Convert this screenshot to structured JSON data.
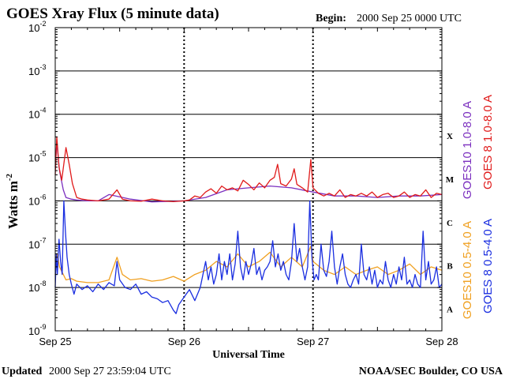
{
  "header": {
    "title": "GOES Xray Flux (5 minute data)",
    "begin_label": "Begin:",
    "begin_value": "2000 Sep 25 0000 UTC"
  },
  "footer": {
    "updated_label": "Updated",
    "updated_value": "2000 Sep 27 23:59:04 UTC",
    "credit": "NOAA/SEC Boulder, CO USA"
  },
  "chart_data": {
    "type": "line",
    "title": "GOES Xray Flux (5 minute data)",
    "xlabel": "Universal Time",
    "ylabel": "Watts m",
    "ylabel_sup": "-2",
    "yscale": "log",
    "ylim": [
      1e-09,
      0.01
    ],
    "ytick_exponents": [
      -2,
      -3,
      -4,
      -5,
      -6,
      -7,
      -8,
      -9
    ],
    "ytick_base": "10",
    "xlim": [
      0,
      72
    ],
    "x_units": "hours since 2000 Sep 25 0000 UTC",
    "xticks": [
      {
        "x": 0,
        "label": "Sep 25"
      },
      {
        "x": 24,
        "label": "Sep 26"
      },
      {
        "x": 48,
        "label": "Sep 27"
      },
      {
        "x": 72,
        "label": "Sep 28"
      }
    ],
    "flare_classes": [
      {
        "label": "X",
        "exp": -4
      },
      {
        "label": "M",
        "exp": -5
      },
      {
        "label": "C",
        "exp": -6
      },
      {
        "label": "B",
        "exp": -7
      },
      {
        "label": "A",
        "exp": -8
      }
    ],
    "series": [
      {
        "name": "GOES10 1.0-8.0 A",
        "color": "#7b2fbf",
        "points": [
          [
            0,
            6e-06
          ],
          [
            0.3,
            2.2e-05
          ],
          [
            0.8,
            5e-06
          ],
          [
            1.5,
            1.8e-06
          ],
          [
            2,
            1.2e-06
          ],
          [
            3,
            1.1e-06
          ],
          [
            4,
            1.05e-06
          ],
          [
            6,
            1e-06
          ],
          [
            8,
            1e-06
          ],
          [
            10,
            1.4e-06
          ],
          [
            14,
            1.1e-06
          ],
          [
            18,
            9.5e-07
          ],
          [
            22,
            9.8e-07
          ],
          [
            24,
            1e-06
          ],
          [
            28,
            1.2e-06
          ],
          [
            32,
            1.8e-06
          ],
          [
            36,
            2e-06
          ],
          [
            40,
            2.2e-06
          ],
          [
            44,
            2e-06
          ],
          [
            48,
            1.6e-06
          ],
          [
            52,
            1.3e-06
          ],
          [
            56,
            1.3e-06
          ],
          [
            60,
            1.2e-06
          ],
          [
            64,
            1.3e-06
          ],
          [
            68,
            1.3e-06
          ],
          [
            72,
            1.4e-06
          ]
        ]
      },
      {
        "name": "GOES 8 1.0-8.0 A",
        "color": "#e01a1a",
        "points": [
          [
            0,
            4e-06
          ],
          [
            0.3,
            3e-05
          ],
          [
            0.7,
            6e-06
          ],
          [
            1.2,
            3e-06
          ],
          [
            2,
            1.7e-05
          ],
          [
            2.6,
            7e-06
          ],
          [
            3.2,
            2.5e-06
          ],
          [
            4,
            1.2e-06
          ],
          [
            5,
            1.1e-06
          ],
          [
            6,
            1.05e-06
          ],
          [
            8,
            1e-06
          ],
          [
            10,
            1.1e-06
          ],
          [
            11.5,
            1.8e-06
          ],
          [
            12.5,
            1.1e-06
          ],
          [
            14,
            1e-06
          ],
          [
            16,
            9.8e-07
          ],
          [
            18,
            1.1e-06
          ],
          [
            20,
            1e-06
          ],
          [
            22,
            9.6e-07
          ],
          [
            24,
            1e-06
          ],
          [
            25,
            1.05e-06
          ],
          [
            26,
            1.3e-06
          ],
          [
            27,
            1.2e-06
          ],
          [
            28,
            1.6e-06
          ],
          [
            29,
            1.9e-06
          ],
          [
            30,
            1.5e-06
          ],
          [
            31,
            2.2e-06
          ],
          [
            32,
            1.8e-06
          ],
          [
            33,
            2e-06
          ],
          [
            34,
            1.7e-06
          ],
          [
            35,
            3e-06
          ],
          [
            36,
            2.4e-06
          ],
          [
            37,
            1.8e-06
          ],
          [
            38,
            2.6e-06
          ],
          [
            39,
            2e-06
          ],
          [
            40,
            3e-06
          ],
          [
            40.8,
            3.5e-06
          ],
          [
            41.4,
            7e-06
          ],
          [
            42,
            2.5e-06
          ],
          [
            43,
            2.2e-06
          ],
          [
            44,
            3.2e-06
          ],
          [
            44.5,
            5.5e-06
          ],
          [
            45,
            2.4e-06
          ],
          [
            46,
            2e-06
          ],
          [
            47,
            1.6e-06
          ],
          [
            47.6,
            9e-06
          ],
          [
            48,
            2e-06
          ],
          [
            49,
            1.5e-06
          ],
          [
            50,
            1.3e-06
          ],
          [
            51,
            1.5e-06
          ],
          [
            52,
            1.3e-06
          ],
          [
            53,
            1.8e-06
          ],
          [
            54,
            1.2e-06
          ],
          [
            55,
            1.4e-06
          ],
          [
            56,
            1.3e-06
          ],
          [
            57,
            1.5e-06
          ],
          [
            58,
            1.3e-06
          ],
          [
            59,
            1.6e-06
          ],
          [
            60,
            1.2e-06
          ],
          [
            61,
            1.4e-06
          ],
          [
            62,
            1.5e-06
          ],
          [
            63,
            1.2e-06
          ],
          [
            64,
            1.3e-06
          ],
          [
            65,
            1.6e-06
          ],
          [
            66,
            1.2e-06
          ],
          [
            67,
            1.4e-06
          ],
          [
            68,
            1.3e-06
          ],
          [
            69,
            1.8e-06
          ],
          [
            70,
            1.2e-06
          ],
          [
            71,
            1.5e-06
          ],
          [
            72,
            1.4e-06
          ]
        ]
      },
      {
        "name": "GOES10 0.5-4.0 A",
        "color": "#f0a020",
        "points": [
          [
            0,
            2e-08
          ],
          [
            0.4,
            6e-08
          ],
          [
            0.8,
            3e-08
          ],
          [
            1.5,
            2e-08
          ],
          [
            2,
            1.5e-08
          ],
          [
            3,
            1.6e-08
          ],
          [
            4,
            1.4e-08
          ],
          [
            6,
            1.3e-08
          ],
          [
            8,
            1.3e-08
          ],
          [
            10,
            1.5e-08
          ],
          [
            11.5,
            5e-08
          ],
          [
            12.5,
            2e-08
          ],
          [
            14,
            1.5e-08
          ],
          [
            16,
            1.6e-08
          ],
          [
            18,
            1.4e-08
          ],
          [
            20,
            1.5e-08
          ],
          [
            22,
            1.8e-08
          ],
          [
            24,
            1.4e-08
          ],
          [
            26,
            2e-08
          ],
          [
            28,
            2.5e-08
          ],
          [
            30,
            4e-08
          ],
          [
            32,
            3e-08
          ],
          [
            34,
            6e-08
          ],
          [
            36,
            3e-08
          ],
          [
            38,
            4e-08
          ],
          [
            40,
            6.5e-08
          ],
          [
            42,
            3e-08
          ],
          [
            44,
            5e-08
          ],
          [
            46,
            3e-08
          ],
          [
            47.6,
            9e-08
          ],
          [
            48,
            4e-08
          ],
          [
            50,
            2.5e-08
          ],
          [
            52,
            2e-08
          ],
          [
            54,
            3e-08
          ],
          [
            56,
            2e-08
          ],
          [
            58,
            2.5e-08
          ],
          [
            60,
            3e-08
          ],
          [
            62,
            2e-08
          ],
          [
            64,
            2.5e-08
          ],
          [
            66,
            3.5e-08
          ],
          [
            68,
            2e-08
          ],
          [
            70,
            3e-08
          ],
          [
            72,
            2.5e-08
          ]
        ]
      },
      {
        "name": "GOES 8 0.5-4.0 A",
        "color": "#1a2ee0",
        "points": [
          [
            0,
            1e-08
          ],
          [
            0.2,
            6e-08
          ],
          [
            0.4,
            2e-08
          ],
          [
            0.7,
            1.3e-07
          ],
          [
            1.0,
            4e-08
          ],
          [
            1.3,
            2e-08
          ],
          [
            1.6,
            1e-06
          ],
          [
            1.9,
            2e-07
          ],
          [
            2.2,
            5e-08
          ],
          [
            2.6,
            2e-08
          ],
          [
            3,
            1.2e-08
          ],
          [
            3.5,
            7e-09
          ],
          [
            4,
            1.2e-08
          ],
          [
            5,
            9e-09
          ],
          [
            6,
            1.1e-08
          ],
          [
            7,
            8e-09
          ],
          [
            8,
            1.2e-08
          ],
          [
            9,
            9e-09
          ],
          [
            10,
            1.3e-08
          ],
          [
            11,
            1.1e-08
          ],
          [
            11.5,
            4e-08
          ],
          [
            12,
            1.5e-08
          ],
          [
            13,
            1e-08
          ],
          [
            14,
            9e-09
          ],
          [
            15,
            1.2e-08
          ],
          [
            16,
            7e-09
          ],
          [
            17,
            8e-09
          ],
          [
            18,
            6e-09
          ],
          [
            19,
            5.5e-09
          ],
          [
            20,
            4.5e-09
          ],
          [
            21,
            5e-09
          ],
          [
            22,
            3e-09
          ],
          [
            22.5,
            2.5e-09
          ],
          [
            23,
            4e-09
          ],
          [
            24,
            6e-09
          ],
          [
            25,
            9e-09
          ],
          [
            26,
            5e-09
          ],
          [
            27,
            1e-08
          ],
          [
            28,
            4e-08
          ],
          [
            28.5,
            1.5e-08
          ],
          [
            29,
            3e-08
          ],
          [
            29.5,
            1.2e-08
          ],
          [
            30,
            2e-08
          ],
          [
            30.5,
            6e-08
          ],
          [
            31,
            1.5e-08
          ],
          [
            31.5,
            4e-08
          ],
          [
            32,
            2e-08
          ],
          [
            32.5,
            6e-08
          ],
          [
            33,
            1.5e-08
          ],
          [
            33.5,
            3.5e-08
          ],
          [
            34,
            2e-07
          ],
          [
            34.5,
            3e-08
          ],
          [
            35,
            1.5e-08
          ],
          [
            35.5,
            4e-08
          ],
          [
            36,
            2e-08
          ],
          [
            36.5,
            3.5e-08
          ],
          [
            37,
            8e-08
          ],
          [
            37.5,
            2e-08
          ],
          [
            38,
            3e-08
          ],
          [
            38.5,
            1.5e-08
          ],
          [
            39,
            2.5e-08
          ],
          [
            39.5,
            3e-08
          ],
          [
            40,
            4e-08
          ],
          [
            40.5,
            1.2e-07
          ],
          [
            41,
            3e-08
          ],
          [
            41.5,
            6e-08
          ],
          [
            42,
            2.5e-08
          ],
          [
            42.5,
            4e-08
          ],
          [
            43,
            2e-08
          ],
          [
            43.5,
            1.5e-08
          ],
          [
            44,
            4e-08
          ],
          [
            44.5,
            3e-07
          ],
          [
            45,
            4e-08
          ],
          [
            45.5,
            8e-08
          ],
          [
            46,
            3e-08
          ],
          [
            46.5,
            1.5e-08
          ],
          [
            47,
            3e-08
          ],
          [
            47.4,
            1e-06
          ],
          [
            47.8,
            5e-08
          ],
          [
            48.2,
            1.5e-08
          ],
          [
            48.6,
            2e-08
          ],
          [
            49,
            1.5e-08
          ],
          [
            49.5,
            1e-07
          ],
          [
            50,
            2.5e-08
          ],
          [
            50.5,
            1.8e-08
          ],
          [
            51,
            4e-08
          ],
          [
            51.5,
            2e-07
          ],
          [
            52,
            3e-08
          ],
          [
            52.5,
            1.2e-08
          ],
          [
            53,
            3e-08
          ],
          [
            53.5,
            6e-08
          ],
          [
            54,
            2e-08
          ],
          [
            54.5,
            1.2e-08
          ],
          [
            55,
            1e-08
          ],
          [
            55.5,
            1.5e-08
          ],
          [
            56,
            2e-08
          ],
          [
            56.5,
            1.2e-08
          ],
          [
            57,
            1e-07
          ],
          [
            57.5,
            2e-08
          ],
          [
            58,
            1.5e-08
          ],
          [
            58.5,
            3e-08
          ],
          [
            59,
            1.2e-08
          ],
          [
            59.5,
            2.5e-08
          ],
          [
            60,
            1e-08
          ],
          [
            60.5,
            1.5e-08
          ],
          [
            61,
            1.2e-08
          ],
          [
            61.5,
            4e-08
          ],
          [
            62,
            1.5e-08
          ],
          [
            62.5,
            1e-08
          ],
          [
            63,
            2e-08
          ],
          [
            63.5,
            1.2e-08
          ],
          [
            64,
            3e-08
          ],
          [
            64.5,
            1.5e-08
          ],
          [
            65,
            5e-08
          ],
          [
            65.5,
            1.2e-08
          ],
          [
            66,
            1.5e-08
          ],
          [
            66.5,
            1e-08
          ],
          [
            67,
            2e-08
          ],
          [
            67.5,
            1.2e-08
          ],
          [
            68,
            1e-08
          ],
          [
            68.5,
            2e-07
          ],
          [
            69,
            1.5e-08
          ],
          [
            69.5,
            4e-08
          ],
          [
            70,
            1.2e-08
          ],
          [
            70.5,
            1.5e-08
          ],
          [
            71,
            3e-08
          ],
          [
            71.5,
            1e-08
          ],
          [
            72,
            1.2e-08
          ]
        ]
      }
    ]
  }
}
